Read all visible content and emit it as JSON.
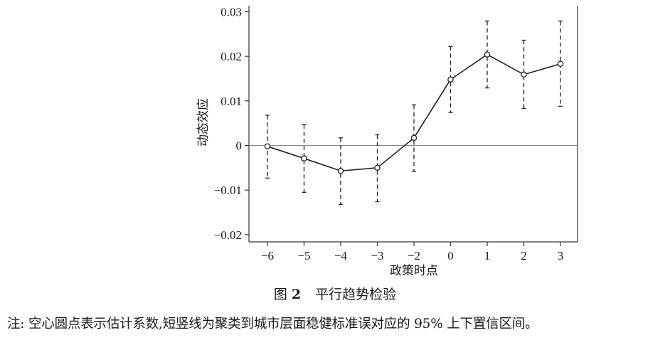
{
  "chart_data": {
    "type": "line",
    "subtype": "event-study with error bars",
    "x": [
      -6,
      -5,
      -4,
      -3,
      -2,
      0,
      1,
      2,
      3
    ],
    "x_tick_labels": [
      "−6",
      "−5",
      "−4",
      "−3",
      "−2",
      "0",
      "1",
      "2",
      "3"
    ],
    "values": [
      -0.0002,
      -0.0029,
      -0.0057,
      -0.005,
      0.0017,
      0.0148,
      0.0204,
      0.0159,
      0.0183
    ],
    "ci_lower": [
      -0.0073,
      -0.0105,
      -0.0132,
      -0.0126,
      -0.0058,
      0.0074,
      0.0129,
      0.0083,
      0.0088
    ],
    "ci_upper": [
      0.0068,
      0.0047,
      0.0017,
      0.0024,
      0.0091,
      0.0222,
      0.0279,
      0.0236,
      0.0279
    ],
    "ylim": [
      -0.022,
      0.0315
    ],
    "y_ticks": [
      -0.02,
      -0.01,
      0,
      0.01,
      0.02,
      0.03
    ],
    "y_tick_labels": [
      "−0.02",
      "−0.01",
      "0",
      "0.01",
      "0.02",
      "0.03"
    ],
    "xlabel": "政策时点",
    "ylabel": "动态效应",
    "reference_line_y": 0,
    "marker": "hollow-circle",
    "errorbar_style": "dashed",
    "grid": false,
    "legend": "none",
    "colors": {
      "line": "#222222",
      "reference": "#888888"
    }
  },
  "caption": {
    "figure_label": "图",
    "figure_number": "2",
    "title": "平行趋势检验"
  },
  "note": "注: 空心圆点表示估计系数,短竖线为聚类到城市层面稳健标准误对应的 95% 上下置信区间。"
}
